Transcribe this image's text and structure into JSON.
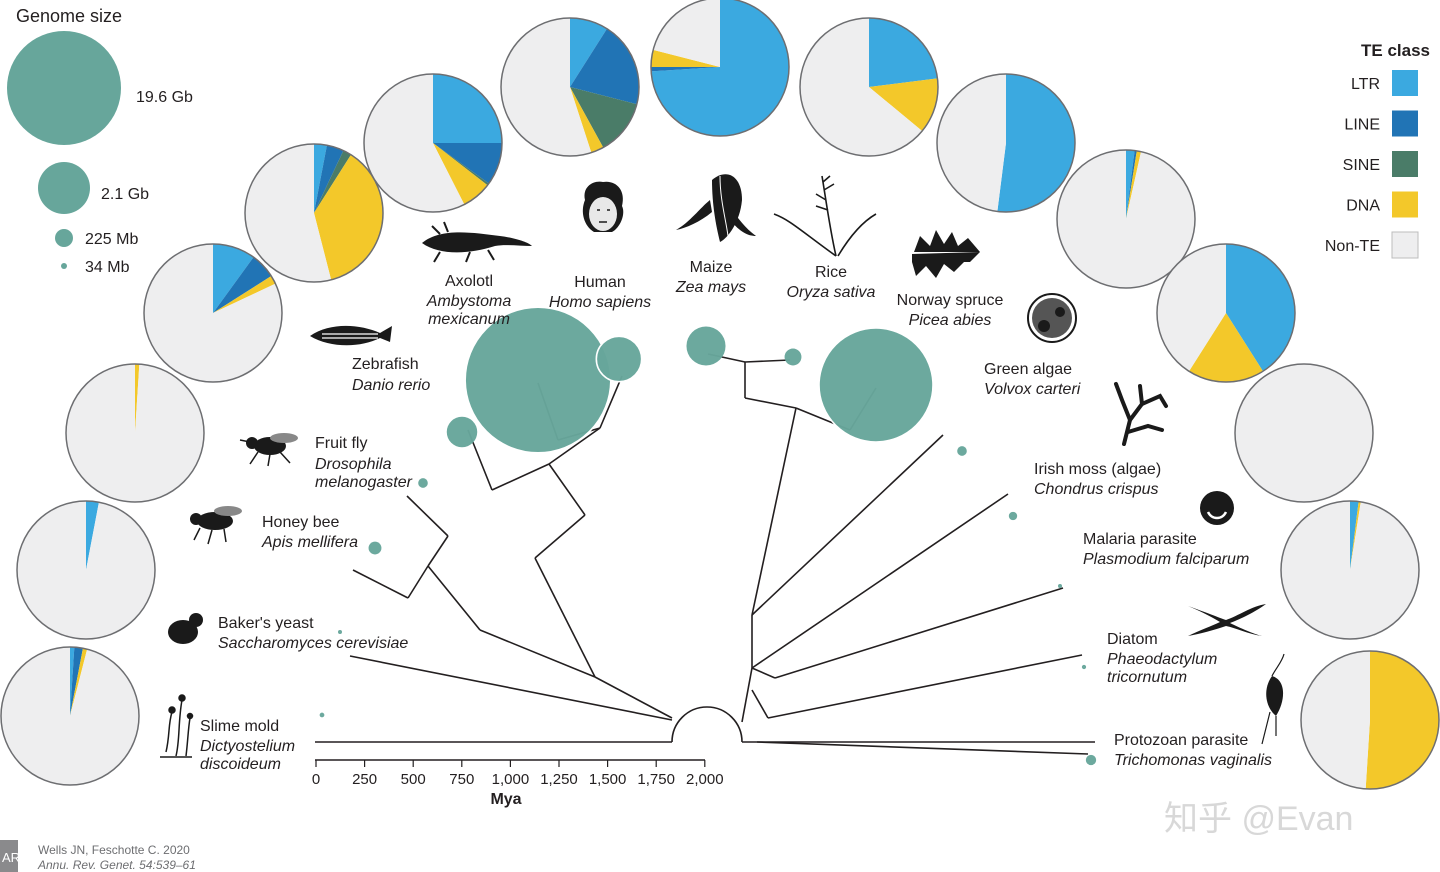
{
  "colors": {
    "LTR": "#3ba9e0",
    "LINE": "#2174b5",
    "SINE": "#4a7c68",
    "DNA": "#f3c82a",
    "Non-TE": "#eeeeef",
    "genome": "#67a69b",
    "tree": "#231f20"
  },
  "genome_legend": {
    "title": "Genome size",
    "items": [
      {
        "label": "19.6 Gb",
        "gb": 19.6
      },
      {
        "label": "2.1 Gb",
        "gb": 2.1
      },
      {
        "label": "225 Mb",
        "gb": 0.225
      },
      {
        "label": "34 Mb",
        "gb": 0.034
      }
    ]
  },
  "te_legend": {
    "title": "TE class",
    "classes": [
      "LTR",
      "LINE",
      "SINE",
      "DNA",
      "Non-TE"
    ]
  },
  "axis": {
    "label": "Mya",
    "ticks": [
      "0",
      "250",
      "500",
      "750",
      "1,000",
      "1,250",
      "1,500",
      "1,750",
      "2,000"
    ]
  },
  "chart_data": {
    "type": "pie",
    "description_fields": [
      "LTR",
      "LINE",
      "SINE",
      "DNA",
      "Non-TE"
    ],
    "species": [
      {
        "common": "Slime mold",
        "latin": [
          "Dictyostelium",
          "discoideum"
        ],
        "genome_gb": 0.034,
        "te": {
          "LTR": 1,
          "LINE": 2,
          "SINE": 0,
          "DNA": 1,
          "Non-TE": 96
        }
      },
      {
        "common": "Baker's yeast",
        "latin": [
          "Saccharomyces cerevisiae"
        ],
        "genome_gb": 0.012,
        "te": {
          "LTR": 3,
          "LINE": 0,
          "SINE": 0,
          "DNA": 0,
          "Non-TE": 97
        }
      },
      {
        "common": "Honey bee",
        "latin": [
          "Apis mellifera"
        ],
        "genome_gb": 0.25,
        "te": {
          "LTR": 0,
          "LINE": 0,
          "SINE": 0,
          "DNA": 1,
          "Non-TE": 99
        }
      },
      {
        "common": "Fruit fly",
        "latin": [
          "Drosophila",
          "melanogaster"
        ],
        "genome_gb": 0.14,
        "te": {
          "LTR": 10,
          "LINE": 6,
          "SINE": 0,
          "DNA": 2,
          "Non-TE": 82
        }
      },
      {
        "common": "Zebrafish",
        "latin": [
          "Danio rerio"
        ],
        "genome_gb": 1.4,
        "te": {
          "LTR": 3,
          "LINE": 4,
          "SINE": 2,
          "DNA": 37,
          "Non-TE": 54
        }
      },
      {
        "common": "Axolotl",
        "latin": [
          "Ambystoma",
          "mexicanum"
        ],
        "genome_gb": 32,
        "te": {
          "LTR": 25,
          "LINE": 10,
          "SINE": 0.5,
          "DNA": 7,
          "Non-TE": 57.5
        }
      },
      {
        "common": "Human",
        "latin": [
          "Homo sapiens"
        ],
        "genome_gb": 3.1,
        "te": {
          "LTR": 9,
          "LINE": 20,
          "SINE": 13,
          "DNA": 3,
          "Non-TE": 55
        }
      },
      {
        "common": "Maize",
        "latin": [
          "Zea mays"
        ],
        "genome_gb": 2.3,
        "te": {
          "LTR": 74,
          "LINE": 1,
          "SINE": 0,
          "DNA": 4,
          "Non-TE": 21
        }
      },
      {
        "common": "Rice",
        "latin": [
          "Oryza sativa"
        ],
        "genome_gb": 0.43,
        "te": {
          "LTR": 23,
          "LINE": 0,
          "SINE": 0,
          "DNA": 13,
          "Non-TE": 64
        }
      },
      {
        "common": "Norway spruce",
        "latin": [
          "Picea abies"
        ],
        "genome_gb": 19.6,
        "te": {
          "LTR": 52,
          "LINE": 0,
          "SINE": 0,
          "DNA": 0,
          "Non-TE": 48
        }
      },
      {
        "common": "Green algae",
        "latin": [
          "Volvox carteri"
        ],
        "genome_gb": 0.14,
        "te": {
          "LTR": 2,
          "LINE": 0.5,
          "SINE": 0,
          "DNA": 1,
          "Non-TE": 96.5
        }
      },
      {
        "common": "Irish moss (algae)",
        "latin": [
          "Chondrus crispus"
        ],
        "genome_gb": 0.105,
        "te": {
          "LTR": 41,
          "LINE": 0,
          "SINE": 0,
          "DNA": 18,
          "Non-TE": 41
        }
      },
      {
        "common": "Malaria parasite",
        "latin": [
          "Plasmodium falciparum"
        ],
        "genome_gb": 0.023,
        "te": {
          "LTR": 0,
          "LINE": 0,
          "SINE": 0,
          "DNA": 0,
          "Non-TE": 100
        }
      },
      {
        "common": "Diatom",
        "latin": [
          "Phaeodactylum",
          "tricornutum"
        ],
        "genome_gb": 0.027,
        "te": {
          "LTR": 2,
          "LINE": 0,
          "SINE": 0,
          "DNA": 0.5,
          "Non-TE": 97.5
        }
      },
      {
        "common": "Protozoan parasite",
        "latin": [
          "Trichomonas vaginalis"
        ],
        "genome_gb": 0.16,
        "te": {
          "LTR": 0,
          "LINE": 0,
          "SINE": 0,
          "DNA": 51,
          "Non-TE": 49
        }
      }
    ]
  },
  "credit": {
    "logo": "AR",
    "line1": "Wells JN, Feschotte C. 2020",
    "line2": "Annu. Rev. Genet. 54:539–61"
  },
  "watermark": "知乎 @Evan"
}
